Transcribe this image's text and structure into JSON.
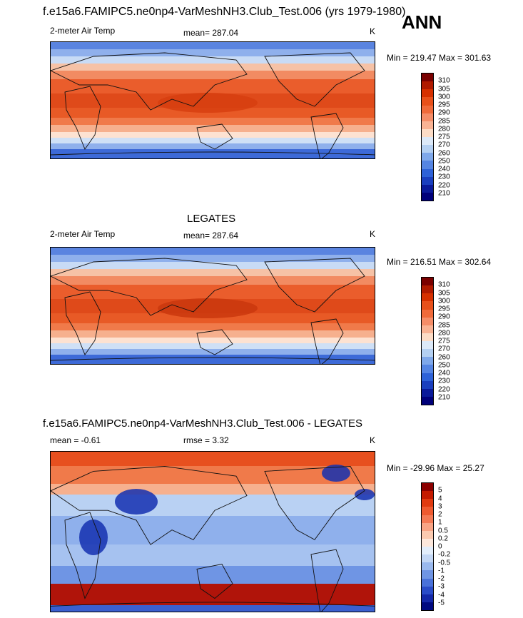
{
  "header": {
    "title": "f.e15a6.FAMIPC5.ne0np4-VarMeshNH3.Club_Test.006 (yrs 1979-1980)",
    "season": "ANN"
  },
  "panels": [
    {
      "title": "",
      "left_label": "2-meter Air Temp",
      "mid_label": "mean= 287.04",
      "right_label": "K",
      "range": "Min = 219.47 Max = 301.63",
      "colorbar": "abs"
    },
    {
      "title": "LEGATES",
      "left_label": "2-meter Air Temp",
      "mid_label": "mean= 287.64",
      "right_label": "K",
      "range": "Min = 216.51 Max = 302.64",
      "colorbar": "abs"
    },
    {
      "title": "f.e15a6.FAMIPC5.ne0np4-VarMeshNH3.Club_Test.006 - LEGATES",
      "left_label": "mean =  -0.61",
      "mid_label": "rmse =   3.32",
      "right_label": "K",
      "range": "Min = -29.96 Max =  25.27",
      "colorbar": "diff"
    }
  ],
  "colorbars": {
    "abs": {
      "labels": [
        "310",
        "305",
        "300",
        "295",
        "290",
        "285",
        "280",
        "275",
        "270",
        "260",
        "250",
        "240",
        "230",
        "220",
        "210"
      ],
      "colors": [
        "#7a0000",
        "#b01a00",
        "#d63000",
        "#e8501a",
        "#f06a3a",
        "#f58d68",
        "#f9b394",
        "#fcdcc6",
        "#dce9f8",
        "#b4d0f2",
        "#7fa8ea",
        "#5585e3",
        "#2e62d8",
        "#1a3fbf",
        "#0a1a9a",
        "#00007a"
      ]
    },
    "diff": {
      "labels": [
        "5",
        "4",
        "3",
        "2",
        "1",
        "0.5",
        "0.2",
        "0",
        "-0.2",
        "-0.5",
        "-1",
        "-2",
        "-3",
        "-4",
        "-5"
      ],
      "colors": [
        "#8b0000",
        "#c41a00",
        "#e03a10",
        "#ee5a30",
        "#f47a55",
        "#f8a485",
        "#fbcab0",
        "#fde8dc",
        "#e3eefb",
        "#c3d7f5",
        "#9ab9ee",
        "#6f95e4",
        "#4a72da",
        "#2a4cc8",
        "#1428a8",
        "#000a80"
      ]
    }
  }
}
